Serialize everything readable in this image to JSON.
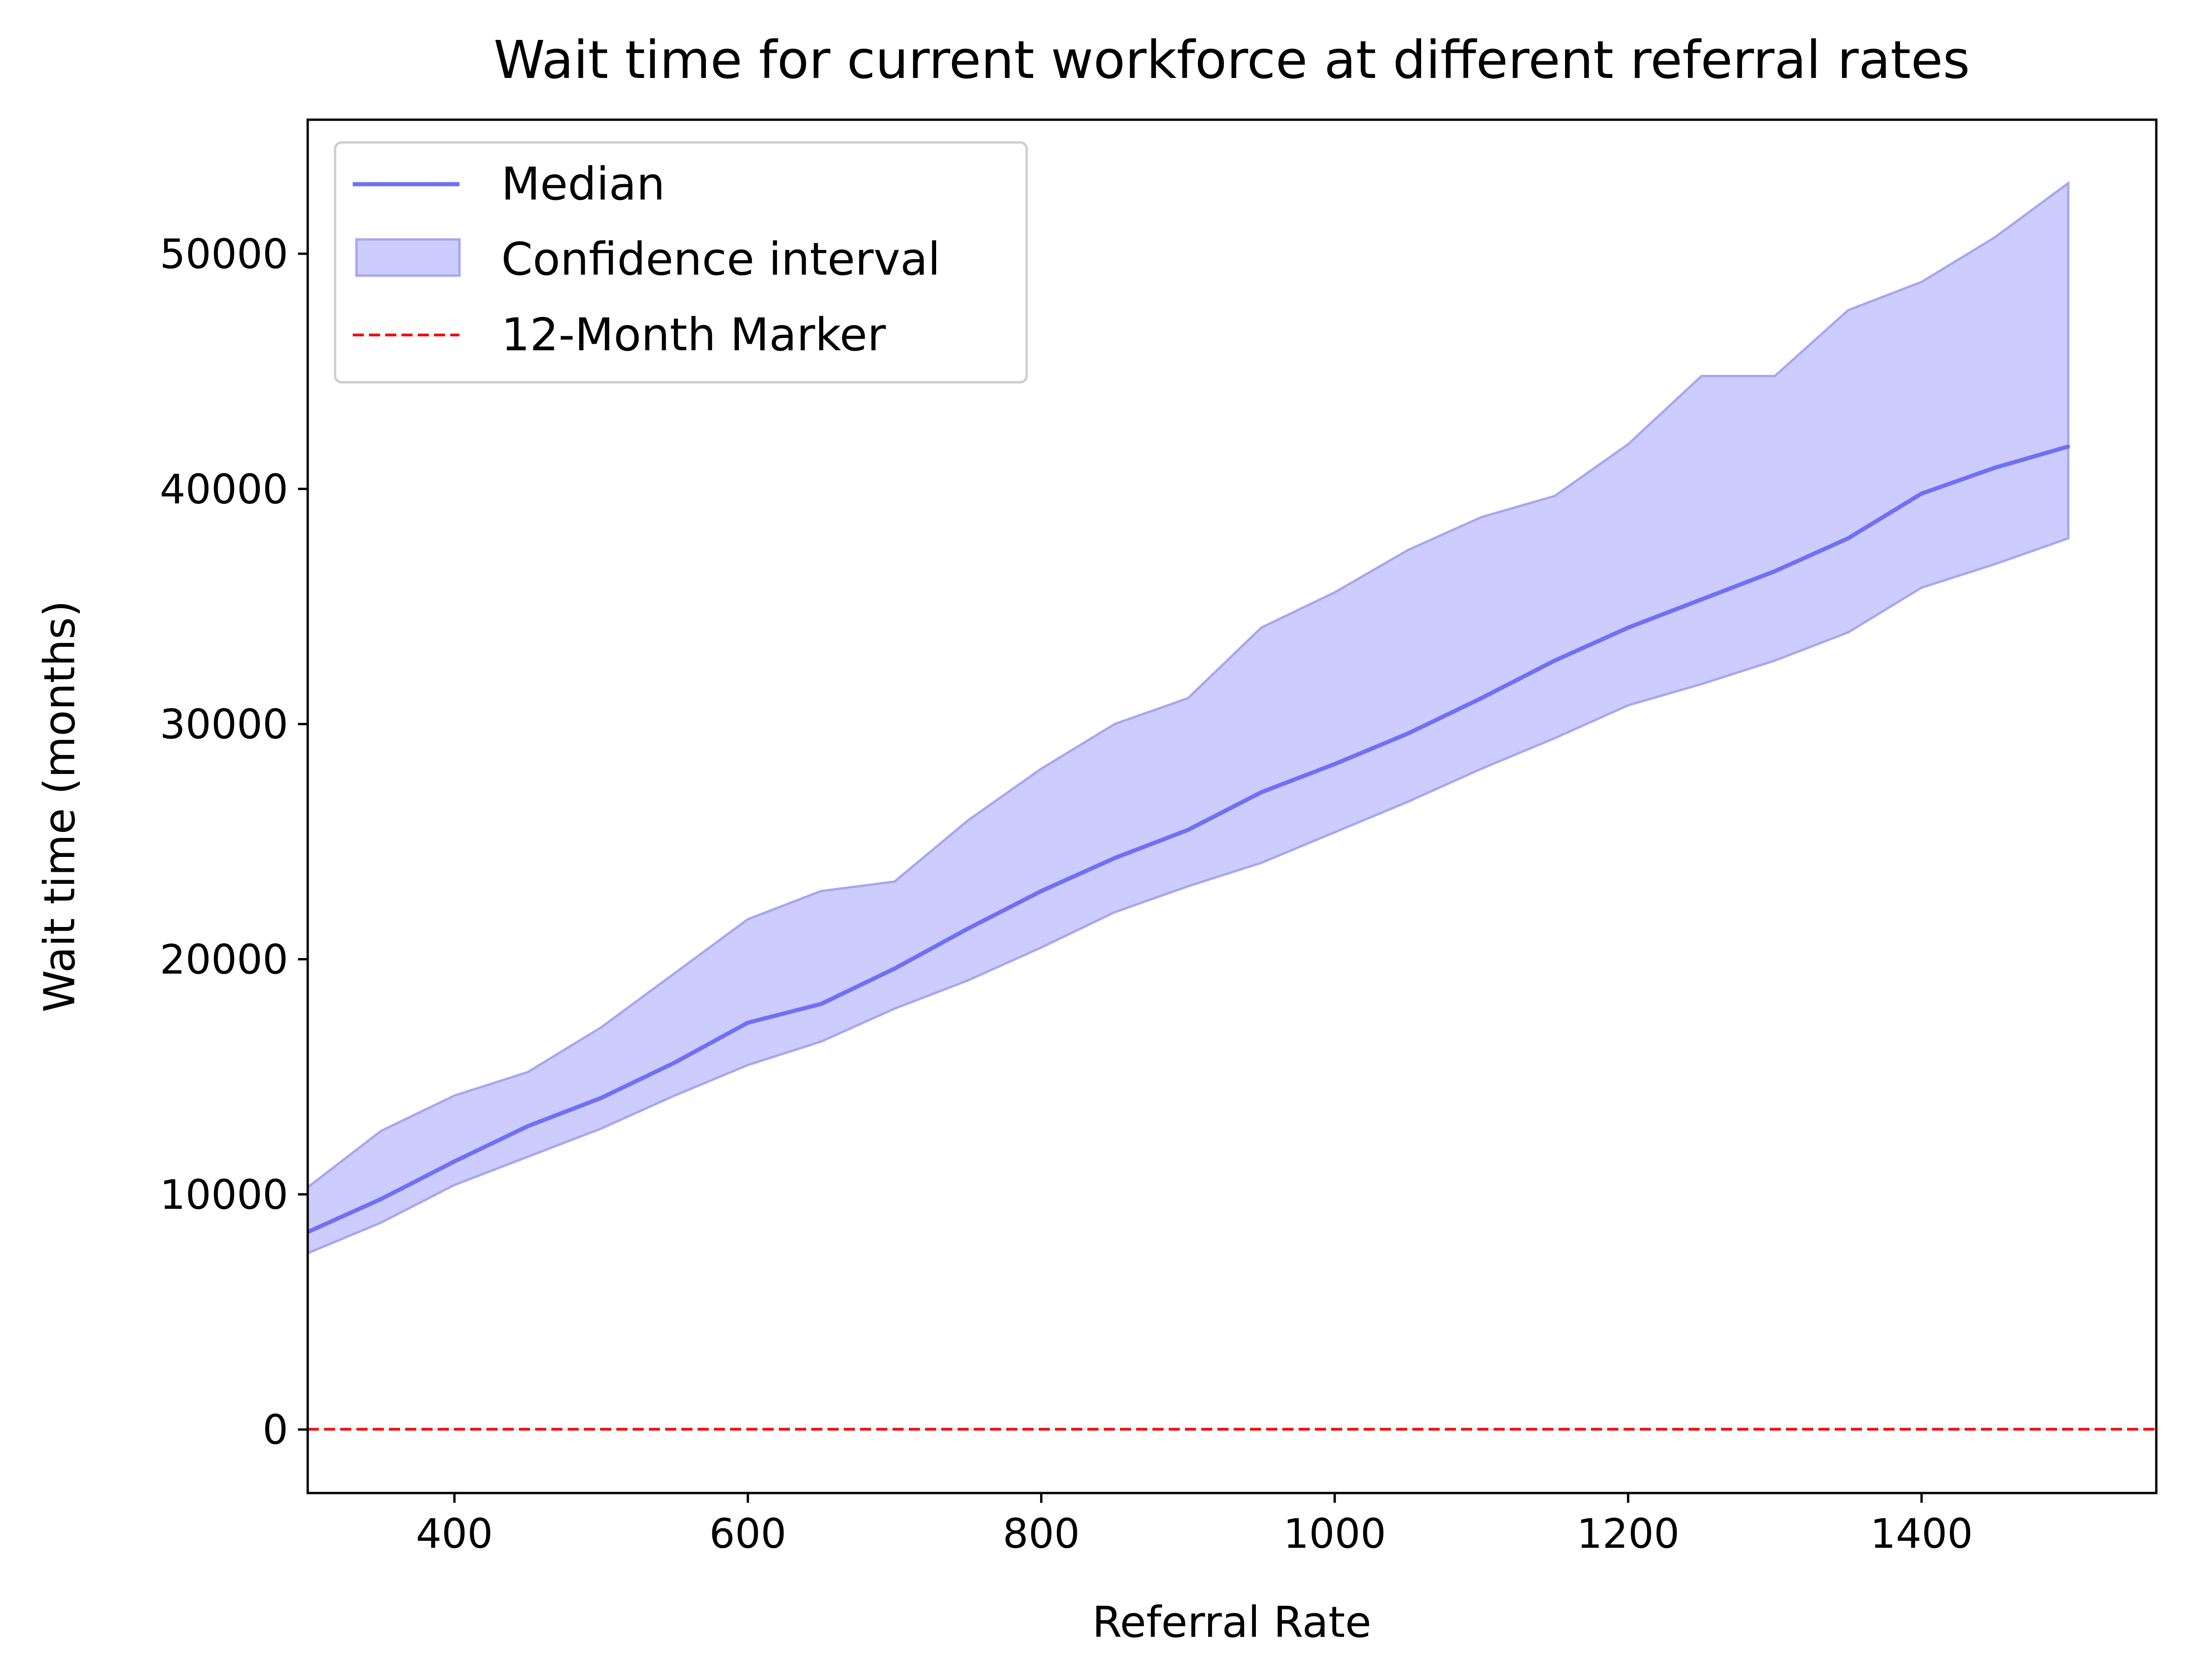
{
  "chart_data": {
    "type": "line",
    "title": "Wait time for current workforce at different referral rates",
    "xlabel": "Referral Rate",
    "ylabel": "Wait time (months)",
    "xlim": [
      300,
      1560
    ],
    "ylim": [
      -2700,
      55700
    ],
    "x_ticks": [
      400,
      600,
      800,
      1000,
      1200,
      1400
    ],
    "y_ticks": [
      0,
      10000,
      20000,
      30000,
      40000,
      50000
    ],
    "grid": false,
    "legend_position": "upper-left",
    "x": [
      300,
      350,
      400,
      450,
      500,
      550,
      600,
      650,
      700,
      750,
      800,
      850,
      900,
      950,
      1000,
      1050,
      1100,
      1150,
      1200,
      1250,
      1300,
      1350,
      1400,
      1450,
      1500
    ],
    "series": [
      {
        "name": "Median",
        "kind": "line",
        "color": "#7070f5",
        "values": [
          8400,
          9800,
          11400,
          12900,
          14100,
          15600,
          17300,
          18100,
          19600,
          21300,
          22900,
          24300,
          25500,
          27100,
          28300,
          29600,
          31100,
          32700,
          34100,
          35300,
          36500,
          37900,
          39800,
          40900,
          41800
        ]
      },
      {
        "name": "Confidence interval",
        "kind": "band",
        "color": "#ccccff",
        "edge_color": "#a6a6f0",
        "lower": [
          7500,
          8800,
          10400,
          11600,
          12800,
          14200,
          15500,
          16500,
          17900,
          19100,
          20500,
          22000,
          23100,
          24100,
          25400,
          26700,
          28100,
          29400,
          30800,
          31700,
          32700,
          33900,
          35800,
          36800,
          37900
        ],
        "upper": [
          10300,
          12700,
          14200,
          15200,
          17100,
          19400,
          21700,
          22900,
          23300,
          25900,
          28100,
          30000,
          31100,
          34100,
          35600,
          37400,
          38800,
          39700,
          41900,
          44800,
          44800,
          47600,
          48800,
          50700,
          53000
        ]
      },
      {
        "name": "12-Month Marker",
        "kind": "hline",
        "color": "#ee1111",
        "value": 12
      }
    ]
  }
}
